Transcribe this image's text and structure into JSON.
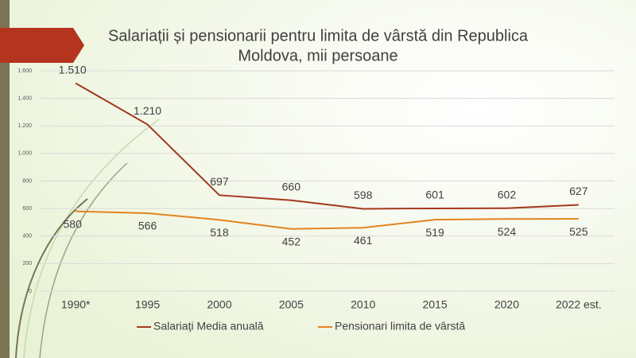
{
  "chart_data": {
    "type": "line",
    "title": [
      "Salariații și pensionarii pentru limita de vârstă din Republica",
      "Moldova, mii persoane"
    ],
    "categories": [
      "1990*",
      "1995",
      "2000",
      "2005",
      "2010",
      "2015",
      "2020",
      "2022 est."
    ],
    "series": [
      {
        "name": "Salariați Media anuală",
        "color": "#a3381e",
        "values": [
          1510,
          1210,
          697,
          660,
          598,
          601,
          602,
          627
        ],
        "value_labels": [
          "1.510",
          "1.210",
          "697",
          "660",
          "598",
          "601",
          "602",
          "627"
        ]
      },
      {
        "name": "Pensionari limita de vârstă",
        "color": "#e3831f",
        "values": [
          580,
          566,
          518,
          452,
          461,
          519,
          524,
          525
        ]
      }
    ],
    "ylim": [
      0,
      1600
    ],
    "yticks": [
      0,
      200,
      400,
      600,
      800,
      {
        "value": 1000,
        "label": "1.000"
      },
      {
        "value": 1200,
        "label": "1.200"
      },
      {
        "value": 1400,
        "label": "1.400"
      },
      {
        "value": 1600,
        "label": "1.600"
      }
    ],
    "grid": true,
    "legend": "bottom"
  }
}
